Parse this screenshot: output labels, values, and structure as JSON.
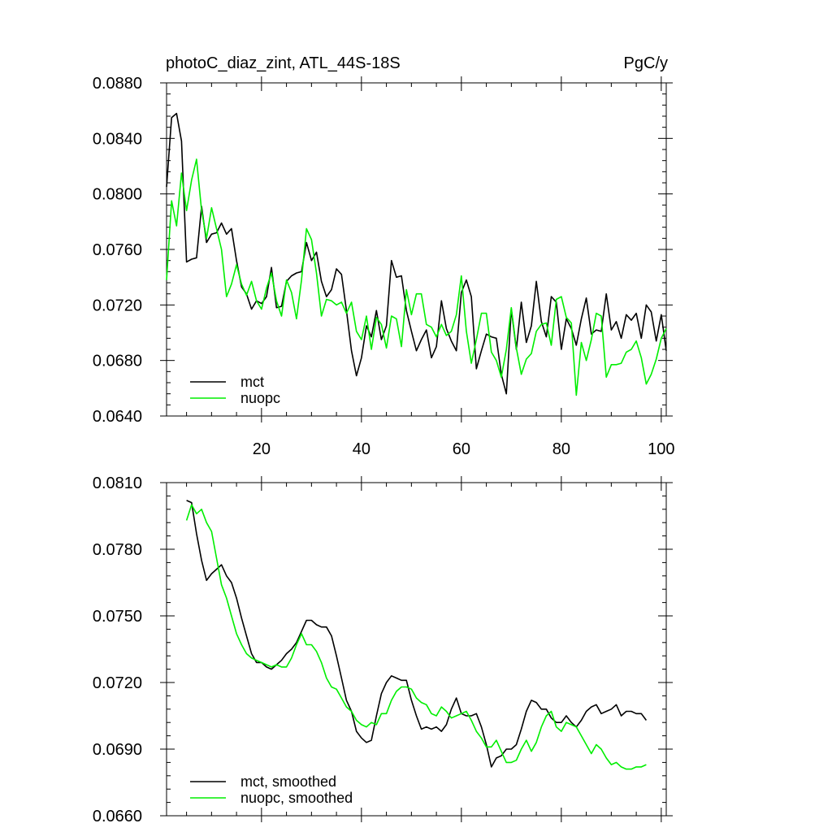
{
  "chart_data": [
    {
      "type": "line",
      "title": "photoC_diaz_zint, ATL_44S-18S",
      "units": "PgC/y",
      "xlim": [
        1,
        101
      ],
      "ylim": [
        0.064,
        0.088
      ],
      "xticks": [
        "20",
        "40",
        "60",
        "80",
        "100"
      ],
      "xtick_values": [
        20,
        40,
        60,
        80,
        100
      ],
      "yticks": [
        "0.0640",
        "0.0680",
        "0.0720",
        "0.0760",
        "0.0800",
        "0.0840",
        "0.0880"
      ],
      "ytick_values": [
        0.064,
        0.068,
        0.072,
        0.076,
        0.08,
        0.084,
        0.088
      ],
      "legend_position": "bottom-left",
      "grid": false,
      "series": [
        {
          "name": "mct",
          "color": "#000000",
          "x_start": 1,
          "values": [
            0.0805,
            0.0855,
            0.0858,
            0.0838,
            0.0751,
            0.0753,
            0.0754,
            0.0791,
            0.0765,
            0.0771,
            0.0772,
            0.0779,
            0.0771,
            0.0775,
            0.0752,
            0.0733,
            0.0728,
            0.0717,
            0.0723,
            0.0721,
            0.0726,
            0.0747,
            0.0718,
            0.0719,
            0.0737,
            0.0741,
            0.0743,
            0.0744,
            0.0765,
            0.0752,
            0.0758,
            0.0737,
            0.0726,
            0.0731,
            0.0746,
            0.0742,
            0.0716,
            0.0687,
            0.0669,
            0.0682,
            0.0705,
            0.0697,
            0.0716,
            0.0695,
            0.0705,
            0.0752,
            0.074,
            0.0741,
            0.0716,
            0.0701,
            0.0687,
            0.0695,
            0.0702,
            0.0682,
            0.069,
            0.0723,
            0.0703,
            0.0694,
            0.0687,
            0.0729,
            0.0738,
            0.0726,
            0.0674,
            0.0687,
            0.0699,
            0.0697,
            0.0696,
            0.067,
            0.0656,
            0.0717,
            0.0688,
            0.0722,
            0.0693,
            0.0705,
            0.0737,
            0.0708,
            0.0697,
            0.0726,
            0.0722,
            0.0688,
            0.071,
            0.0703,
            0.0691,
            0.071,
            0.0725,
            0.0699,
            0.0702,
            0.0701,
            0.0728,
            0.0702,
            0.0708,
            0.0696,
            0.0713,
            0.0709,
            0.0714,
            0.0696,
            0.072,
            0.0715,
            0.0694,
            0.0713,
            0.0687
          ]
        },
        {
          "name": "nuopc",
          "color": "#00ee00",
          "x_start": 1,
          "values": [
            0.0738,
            0.0795,
            0.0777,
            0.0815,
            0.0788,
            0.081,
            0.0825,
            0.0788,
            0.0768,
            0.079,
            0.0775,
            0.076,
            0.0726,
            0.0735,
            0.0749,
            0.0735,
            0.0727,
            0.0737,
            0.0723,
            0.0717,
            0.0732,
            0.0743,
            0.0723,
            0.0712,
            0.0738,
            0.0729,
            0.071,
            0.0738,
            0.0775,
            0.0767,
            0.0743,
            0.0712,
            0.0724,
            0.0723,
            0.072,
            0.0722,
            0.0714,
            0.0722,
            0.0701,
            0.0695,
            0.0712,
            0.0688,
            0.0711,
            0.0706,
            0.0689,
            0.0712,
            0.071,
            0.069,
            0.0731,
            0.0713,
            0.0728,
            0.0728,
            0.0706,
            0.0704,
            0.0697,
            0.0706,
            0.0698,
            0.0701,
            0.0713,
            0.0741,
            0.0701,
            0.0678,
            0.0695,
            0.0714,
            0.0714,
            0.0686,
            0.068,
            0.0668,
            0.0688,
            0.0718,
            0.0689,
            0.067,
            0.0681,
            0.0685,
            0.0701,
            0.0706,
            0.0707,
            0.0691,
            0.0724,
            0.0726,
            0.0711,
            0.0707,
            0.0655,
            0.0693,
            0.068,
            0.0695,
            0.0714,
            0.0712,
            0.0668,
            0.0677,
            0.0677,
            0.0678,
            0.0686,
            0.0688,
            0.0694,
            0.0682,
            0.0663,
            0.067,
            0.0681,
            0.0696,
            0.0703
          ]
        }
      ]
    },
    {
      "type": "line",
      "xlim": [
        1,
        101
      ],
      "ylim": [
        0.066,
        0.081
      ],
      "xtick_values": [
        20,
        40,
        60,
        80,
        100
      ],
      "yticks": [
        "0.0660",
        "0.0690",
        "0.0720",
        "0.0750",
        "0.0780",
        "0.0810"
      ],
      "ytick_values": [
        0.066,
        0.069,
        0.072,
        0.075,
        0.078,
        0.081
      ],
      "legend_position": "bottom-left",
      "grid": false,
      "series": [
        {
          "name": "mct, smoothed",
          "color": "#000000",
          "x_start": 5,
          "values": [
            0.0802,
            0.0801,
            0.0787,
            0.0775,
            0.0766,
            0.0769,
            0.0771,
            0.0773,
            0.0768,
            0.0765,
            0.0758,
            0.0749,
            0.0741,
            0.0733,
            0.0729,
            0.0729,
            0.0727,
            0.0726,
            0.0728,
            0.073,
            0.0733,
            0.0735,
            0.0738,
            0.0743,
            0.0748,
            0.0748,
            0.0746,
            0.0745,
            0.0745,
            0.0741,
            0.0732,
            0.0722,
            0.0712,
            0.0707,
            0.0698,
            0.0695,
            0.0693,
            0.0694,
            0.0705,
            0.0715,
            0.072,
            0.0723,
            0.0722,
            0.0721,
            0.0721,
            0.0712,
            0.0705,
            0.0699,
            0.07,
            0.0699,
            0.07,
            0.0698,
            0.0701,
            0.0708,
            0.0713,
            0.0706,
            0.0705,
            0.0705,
            0.0706,
            0.07,
            0.0692,
            0.0682,
            0.0686,
            0.0687,
            0.069,
            0.069,
            0.0692,
            0.0699,
            0.0707,
            0.0712,
            0.0711,
            0.0708,
            0.0708,
            0.0704,
            0.0702,
            0.0702,
            0.0705,
            0.0702,
            0.07,
            0.0703,
            0.0707,
            0.0709,
            0.071,
            0.0706,
            0.0707,
            0.0708,
            0.071,
            0.0705,
            0.0707,
            0.0707,
            0.0706,
            0.0706,
            0.0703
          ]
        },
        {
          "name": "nuopc, smoothed",
          "color": "#00ee00",
          "x_start": 5,
          "values": [
            0.0793,
            0.08,
            0.0796,
            0.0798,
            0.0792,
            0.0788,
            0.0776,
            0.0764,
            0.0758,
            0.075,
            0.0742,
            0.0737,
            0.0733,
            0.0731,
            0.073,
            0.0729,
            0.0728,
            0.0727,
            0.0728,
            0.0727,
            0.0727,
            0.0731,
            0.0737,
            0.0742,
            0.0737,
            0.0737,
            0.0734,
            0.0729,
            0.0722,
            0.0718,
            0.0717,
            0.0713,
            0.0709,
            0.0707,
            0.0703,
            0.0701,
            0.07,
            0.0702,
            0.0701,
            0.0706,
            0.0706,
            0.0712,
            0.0716,
            0.0718,
            0.0718,
            0.0717,
            0.0713,
            0.0711,
            0.071,
            0.0706,
            0.0705,
            0.0709,
            0.0707,
            0.0704,
            0.0705,
            0.0706,
            0.0707,
            0.0703,
            0.0698,
            0.0695,
            0.0691,
            0.0691,
            0.0694,
            0.0689,
            0.0684,
            0.0684,
            0.0685,
            0.069,
            0.0694,
            0.0689,
            0.0693,
            0.07,
            0.0705,
            0.0707,
            0.07,
            0.0698,
            0.0702,
            0.0701,
            0.07,
            0.0696,
            0.0692,
            0.0688,
            0.0692,
            0.069,
            0.0686,
            0.0683,
            0.0684,
            0.0682,
            0.0681,
            0.0681,
            0.0682,
            0.0682,
            0.0683
          ]
        }
      ]
    }
  ]
}
